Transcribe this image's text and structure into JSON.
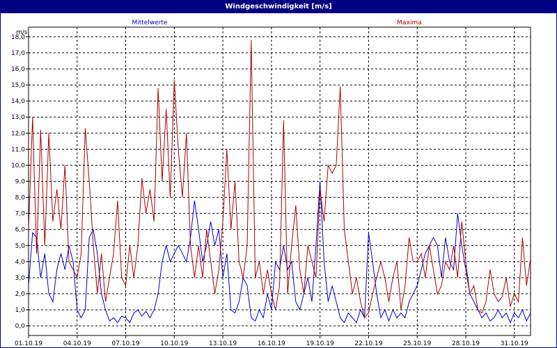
{
  "window": {
    "title": "Windgeschwindigkeit [m/s]"
  },
  "colors": {
    "titlebar": "#000080",
    "mean": "#0000cc",
    "max": "#aa0000",
    "grid": "#000000"
  },
  "chart_data": {
    "type": "line",
    "title": "Windgeschwindigkeit [m/s]",
    "ylabel": "m/s",
    "xlabel": "",
    "ylim": [
      -0.6,
      18.6
    ],
    "grid": true,
    "legend_placement": "top",
    "yticks": [
      "0,0",
      "1,0",
      "2,0",
      "3,0",
      "4,0",
      "5,0",
      "6,0",
      "7,0",
      "8,0",
      "9,0",
      "10,0",
      "11,0",
      "12,0",
      "13,0",
      "14,0",
      "15,0",
      "16,0",
      "17,0",
      "18,0"
    ],
    "xticks": [
      "01.10.19",
      "04.10.19",
      "07.10.19",
      "10.10.19",
      "13.10.19",
      "16.10.19",
      "19.10.19",
      "22.10.19",
      "25.10.19",
      "28.10.19",
      "31.10.19"
    ],
    "series": [
      {
        "name": "Mittelwerte",
        "color": "#0000cc",
        "x": [
          1.0,
          1.25,
          1.5,
          1.75,
          2.0,
          2.25,
          2.5,
          2.75,
          3.0,
          3.25,
          3.5,
          3.75,
          4.0,
          4.25,
          4.5,
          4.75,
          5.0,
          5.25,
          5.5,
          5.75,
          6.0,
          6.25,
          6.5,
          6.75,
          7.0,
          7.25,
          7.5,
          7.75,
          8.0,
          8.25,
          8.5,
          8.75,
          9.0,
          9.25,
          9.5,
          9.75,
          10.0,
          10.25,
          10.5,
          10.75,
          11.0,
          11.25,
          11.5,
          11.75,
          12.0,
          12.25,
          12.5,
          12.75,
          13.0,
          13.25,
          13.5,
          13.75,
          14.0,
          14.25,
          14.5,
          14.75,
          15.0,
          15.25,
          15.5,
          15.75,
          16.0,
          16.25,
          16.5,
          16.75,
          17.0,
          17.25,
          17.5,
          17.75,
          18.0,
          18.25,
          18.5,
          18.75,
          19.0,
          19.25,
          19.5,
          19.75,
          20.0,
          20.25,
          20.5,
          20.75,
          21.0,
          21.25,
          21.5,
          21.75,
          22.0,
          22.25,
          22.5,
          22.75,
          23.0,
          23.25,
          23.5,
          23.75,
          24.0,
          24.25,
          24.5,
          24.75,
          25.0,
          25.25,
          25.5,
          25.75,
          26.0,
          26.25,
          26.5,
          26.75,
          27.0,
          27.25,
          27.5,
          27.75,
          28.0,
          28.25,
          28.5,
          28.75,
          29.0,
          29.25,
          29.5,
          29.75,
          30.0,
          30.25,
          30.5,
          30.75,
          31.0,
          31.25,
          31.5,
          31.75,
          32.0
        ],
        "y": [
          2.5,
          5.8,
          5.5,
          3.0,
          4.5,
          2.0,
          1.5,
          3.5,
          4.5,
          3.5,
          5.0,
          4.0,
          1.0,
          0.5,
          1.0,
          5.5,
          6.0,
          4.5,
          2.0,
          1.0,
          0.3,
          0.5,
          0.2,
          0.6,
          0.5,
          0.2,
          0.8,
          1.0,
          0.6,
          0.9,
          0.5,
          1.0,
          2.0,
          4.0,
          5.0,
          4.0,
          4.5,
          5.0,
          4.5,
          4.0,
          5.5,
          7.8,
          6.0,
          4.0,
          5.0,
          6.5,
          5.0,
          6.0,
          3.0,
          4.5,
          1.0,
          0.8,
          1.5,
          3.0,
          2.5,
          0.5,
          0.3,
          1.0,
          0.5,
          2.0,
          1.0,
          4.0,
          3.5,
          5.0,
          3.5,
          4.0,
          1.5,
          1.0,
          2.0,
          3.0,
          1.5,
          5.0,
          9.0,
          4.0,
          1.5,
          2.5,
          1.5,
          0.5,
          0.2,
          0.8,
          0.5,
          0.2,
          1.0,
          0.5,
          5.8,
          4.0,
          2.0,
          0.5,
          1.0,
          0.3,
          1.0,
          0.5,
          0.8,
          0.5,
          1.5,
          2.0,
          2.5,
          3.5,
          4.5,
          5.0,
          5.5,
          5.0,
          3.0,
          5.5,
          4.0,
          3.5,
          7.0,
          5.0,
          3.5,
          2.0,
          1.5,
          1.0,
          0.5,
          0.8,
          0.3,
          0.5,
          1.0,
          0.5,
          0.8,
          0.2,
          0.8,
          0.5,
          1.0,
          0.3,
          0.8
        ]
      },
      {
        "name": "Maxima",
        "color": "#aa0000",
        "x": [
          1.0,
          1.25,
          1.5,
          1.75,
          2.0,
          2.25,
          2.5,
          2.75,
          3.0,
          3.25,
          3.5,
          3.75,
          4.0,
          4.25,
          4.5,
          4.75,
          5.0,
          5.25,
          5.5,
          5.75,
          6.0,
          6.25,
          6.5,
          6.75,
          7.0,
          7.25,
          7.5,
          7.75,
          8.0,
          8.25,
          8.5,
          8.75,
          9.0,
          9.25,
          9.5,
          9.75,
          10.0,
          10.25,
          10.5,
          10.75,
          11.0,
          11.25,
          11.5,
          11.75,
          12.0,
          12.25,
          12.5,
          12.75,
          13.0,
          13.25,
          13.5,
          13.75,
          14.0,
          14.25,
          14.5,
          14.75,
          15.0,
          15.25,
          15.5,
          15.75,
          16.0,
          16.25,
          16.5,
          16.75,
          17.0,
          17.25,
          17.5,
          17.75,
          18.0,
          18.25,
          18.5,
          18.75,
          19.0,
          19.25,
          19.5,
          19.75,
          20.0,
          20.25,
          20.5,
          20.75,
          21.0,
          21.25,
          21.5,
          21.75,
          22.0,
          22.25,
          22.5,
          22.75,
          23.0,
          23.25,
          23.5,
          23.75,
          24.0,
          24.25,
          24.5,
          24.75,
          25.0,
          25.25,
          25.5,
          25.75,
          26.0,
          26.25,
          26.5,
          26.75,
          27.0,
          27.25,
          27.5,
          27.75,
          28.0,
          28.25,
          28.5,
          28.75,
          29.0,
          29.25,
          29.5,
          29.75,
          30.0,
          30.25,
          30.5,
          30.75,
          31.0,
          31.25,
          31.5,
          31.75,
          32.0
        ],
        "y": [
          6.0,
          13.0,
          4.5,
          12.2,
          5.0,
          12.0,
          6.5,
          8.5,
          6.0,
          10.0,
          4.0,
          3.5,
          3.0,
          4.5,
          12.3,
          9.0,
          5.0,
          2.0,
          4.5,
          1.5,
          3.0,
          4.5,
          7.8,
          3.0,
          2.5,
          5.0,
          3.0,
          5.0,
          9.2,
          7.0,
          8.5,
          6.5,
          14.8,
          9.0,
          13.5,
          8.0,
          15.3,
          11.0,
          8.0,
          12.0,
          5.0,
          3.0,
          5.0,
          3.0,
          6.0,
          4.0,
          2.0,
          3.5,
          6.5,
          11.0,
          6.0,
          9.0,
          4.0,
          3.0,
          5.0,
          17.8,
          3.0,
          4.0,
          2.0,
          3.5,
          2.0,
          1.0,
          2.5,
          12.8,
          2.0,
          5.0,
          7.5,
          3.5,
          2.0,
          5.0,
          4.0,
          3.0,
          8.5,
          6.5,
          10.0,
          9.5,
          10.0,
          14.9,
          6.0,
          4.0,
          2.0,
          3.0,
          1.5,
          0.5,
          0.8,
          2.0,
          3.0,
          4.0,
          3.0,
          1.5,
          3.0,
          4.0,
          1.0,
          2.5,
          5.5,
          4.0,
          4.0,
          4.5,
          3.0,
          5.0,
          3.5,
          2.0,
          2.5,
          4.0,
          3.5,
          5.0,
          3.0,
          6.5,
          4.0,
          2.0,
          2.5,
          1.0,
          0.8,
          1.5,
          3.5,
          2.0,
          1.5,
          1.8,
          3.0,
          1.2,
          2.0,
          1.5,
          5.5,
          2.5,
          4.2
        ]
      }
    ]
  }
}
